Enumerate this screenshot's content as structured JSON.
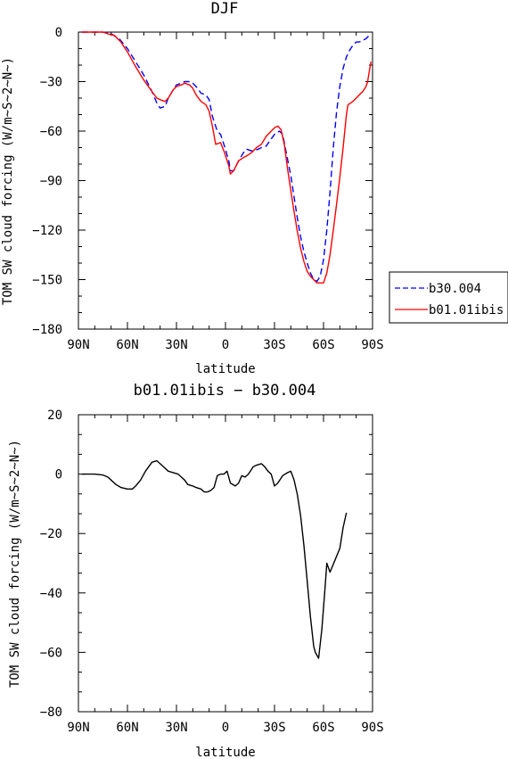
{
  "chart_data": [
    {
      "type": "line",
      "title": "DJF",
      "xlabel": "latitude",
      "ylabel": "TOM SW cloud forcing (W/m~S~2~N~)",
      "x_ticks": [
        "90N",
        "60N",
        "30N",
        "0",
        "30S",
        "60S",
        "90S"
      ],
      "x_tick_values": [
        -90,
        -60,
        -30,
        0,
        30,
        60,
        90
      ],
      "ylim": [
        -180,
        0
      ],
      "y_ticks": [
        0,
        -30,
        -60,
        -90,
        -120,
        -150,
        -180
      ],
      "legend": "right-outside",
      "grid": false,
      "series": [
        {
          "name": "b30.004",
          "color": "#0000ff",
          "dash": "dashed",
          "points": [
            [
              -88,
              0
            ],
            [
              -75,
              0
            ],
            [
              -70,
              -1
            ],
            [
              -65,
              -4
            ],
            [
              -60,
              -10
            ],
            [
              -55,
              -18
            ],
            [
              -50,
              -26
            ],
            [
              -45,
              -36
            ],
            [
              -42,
              -43
            ],
            [
              -40,
              -46
            ],
            [
              -37,
              -45
            ],
            [
              -35,
              -40
            ],
            [
              -32,
              -35
            ],
            [
              -30,
              -32
            ],
            [
              -27,
              -31
            ],
            [
              -25,
              -30
            ],
            [
              -22,
              -30
            ],
            [
              -20,
              -31
            ],
            [
              -17,
              -34
            ],
            [
              -15,
              -37
            ],
            [
              -12,
              -38
            ],
            [
              -10,
              -41
            ],
            [
              -8,
              -51
            ],
            [
              -5,
              -60
            ],
            [
              -3,
              -62
            ],
            [
              -1,
              -68
            ],
            [
              2,
              -78
            ],
            [
              3,
              -84
            ],
            [
              5,
              -84
            ],
            [
              8,
              -78
            ],
            [
              11,
              -73
            ],
            [
              13,
              -71
            ],
            [
              16,
              -72
            ],
            [
              20,
              -71
            ],
            [
              22,
              -70
            ],
            [
              25,
              -69
            ],
            [
              27,
              -66
            ],
            [
              30,
              -62
            ],
            [
              33,
              -60
            ],
            [
              35,
              -62
            ],
            [
              37,
              -72
            ],
            [
              40,
              -87
            ],
            [
              42,
              -100
            ],
            [
              44,
              -113
            ],
            [
              46,
              -124
            ],
            [
              48,
              -133
            ],
            [
              50,
              -140
            ],
            [
              52,
              -146
            ],
            [
              54,
              -150
            ],
            [
              56,
              -151
            ],
            [
              58,
              -148
            ],
            [
              60,
              -138
            ],
            [
              62,
              -120
            ],
            [
              64,
              -97
            ],
            [
              66,
              -70
            ],
            [
              68,
              -48
            ],
            [
              70,
              -33
            ],
            [
              72,
              -22
            ],
            [
              74,
              -15
            ],
            [
              76,
              -11
            ],
            [
              78,
              -8
            ],
            [
              80,
              -6
            ],
            [
              82,
              -6
            ],
            [
              84,
              -5
            ],
            [
              86,
              -4
            ],
            [
              88,
              -2
            ]
          ]
        },
        {
          "name": "b01.01ibis",
          "color": "#ff0000",
          "dash": "solid",
          "points": [
            [
              -88,
              0
            ],
            [
              -75,
              0
            ],
            [
              -72,
              -1
            ],
            [
              -68,
              -2
            ],
            [
              -64,
              -6
            ],
            [
              -60,
              -12
            ],
            [
              -55,
              -21
            ],
            [
              -50,
              -29
            ],
            [
              -45,
              -36
            ],
            [
              -42,
              -40
            ],
            [
              -40,
              -41
            ],
            [
              -37,
              -42
            ],
            [
              -35,
              -40
            ],
            [
              -32,
              -35
            ],
            [
              -30,
              -33
            ],
            [
              -27,
              -32
            ],
            [
              -25,
              -31
            ],
            [
              -22,
              -32
            ],
            [
              -20,
              -34
            ],
            [
              -18,
              -38
            ],
            [
              -15,
              -42
            ],
            [
              -12,
              -44
            ],
            [
              -10,
              -48
            ],
            [
              -8,
              -57
            ],
            [
              -6,
              -68
            ],
            [
              -3,
              -67
            ],
            [
              -1,
              -72
            ],
            [
              2,
              -81
            ],
            [
              3,
              -86
            ],
            [
              5,
              -84
            ],
            [
              8,
              -78
            ],
            [
              11,
              -76
            ],
            [
              13,
              -75
            ],
            [
              16,
              -73
            ],
            [
              19,
              -70
            ],
            [
              22,
              -68
            ],
            [
              25,
              -63
            ],
            [
              27,
              -61
            ],
            [
              30,
              -58
            ],
            [
              32,
              -57
            ],
            [
              34,
              -59
            ],
            [
              36,
              -68
            ],
            [
              38,
              -83
            ],
            [
              40,
              -96
            ],
            [
              42,
              -109
            ],
            [
              44,
              -121
            ],
            [
              46,
              -131
            ],
            [
              48,
              -139
            ],
            [
              50,
              -145
            ],
            [
              52,
              -148
            ],
            [
              54,
              -150
            ],
            [
              56,
              -152
            ],
            [
              58,
              -152
            ],
            [
              60,
              -152
            ],
            [
              62,
              -146
            ],
            [
              64,
              -135
            ],
            [
              66,
              -120
            ],
            [
              68,
              -104
            ],
            [
              70,
              -88
            ],
            [
              72,
              -70
            ],
            [
              74,
              -50
            ],
            [
              75,
              -44
            ],
            [
              78,
              -42
            ],
            [
              80,
              -40
            ],
            [
              82,
              -38
            ],
            [
              84,
              -36
            ],
            [
              86,
              -33
            ],
            [
              87,
              -30
            ],
            [
              88,
              -24
            ],
            [
              89,
              -18
            ]
          ]
        }
      ]
    },
    {
      "type": "line",
      "title": "b01.01ibis − b30.004",
      "xlabel": "latitude",
      "ylabel": "TOM SW cloud forcing (W/m~S~2~N~)",
      "x_ticks": [
        "90N",
        "60N",
        "30N",
        "0",
        "30S",
        "60S",
        "90S"
      ],
      "x_tick_values": [
        -90,
        -60,
        -30,
        0,
        30,
        60,
        90
      ],
      "ylim": [
        -80,
        20
      ],
      "y_ticks": [
        20,
        0,
        -20,
        -40,
        -60,
        -80
      ],
      "grid": false,
      "series": [
        {
          "color": "#000000",
          "dash": "solid",
          "points": [
            [
              -88,
              0
            ],
            [
              -80,
              0
            ],
            [
              -75,
              -0.3
            ],
            [
              -72,
              -1
            ],
            [
              -70,
              -2
            ],
            [
              -67,
              -3.5
            ],
            [
              -64,
              -4.5
            ],
            [
              -60,
              -5
            ],
            [
              -57,
              -5
            ],
            [
              -55,
              -4
            ],
            [
              -52,
              -2
            ],
            [
              -49,
              1
            ],
            [
              -45,
              4
            ],
            [
              -42,
              4.5
            ],
            [
              -40,
              3.5
            ],
            [
              -38,
              2.5
            ],
            [
              -35,
              1
            ],
            [
              -32,
              0.5
            ],
            [
              -29,
              0
            ],
            [
              -27,
              -1
            ],
            [
              -25,
              -2
            ],
            [
              -23,
              -3.5
            ],
            [
              -20,
              -4
            ],
            [
              -18,
              -4.5
            ],
            [
              -15,
              -5
            ],
            [
              -13,
              -6
            ],
            [
              -11,
              -6
            ],
            [
              -9,
              -5.5
            ],
            [
              -7,
              -4.5
            ],
            [
              -5,
              -0.5
            ],
            [
              -3,
              0
            ],
            [
              -1,
              0
            ],
            [
              1,
              1
            ],
            [
              3,
              -3
            ],
            [
              6,
              -4
            ],
            [
              8,
              -3
            ],
            [
              10,
              -0.5
            ],
            [
              12,
              -1
            ],
            [
              14,
              0
            ],
            [
              17,
              2.5
            ],
            [
              19,
              3
            ],
            [
              22,
              3.5
            ],
            [
              24,
              2.5
            ],
            [
              26,
              1
            ],
            [
              28,
              0
            ],
            [
              30,
              -4
            ],
            [
              32,
              -3
            ],
            [
              35,
              -0.5
            ],
            [
              38,
              0.5
            ],
            [
              40,
              1
            ],
            [
              42,
              -2
            ],
            [
              44,
              -7
            ],
            [
              46,
              -14
            ],
            [
              48,
              -24
            ],
            [
              50,
              -36
            ],
            [
              52,
              -48
            ],
            [
              54,
              -58
            ],
            [
              55,
              -60
            ],
            [
              57,
              -62
            ],
            [
              59,
              -52
            ],
            [
              61,
              -38
            ],
            [
              62,
              -30
            ],
            [
              64,
              -33
            ],
            [
              67,
              -29
            ],
            [
              70,
              -25
            ],
            [
              72,
              -18
            ],
            [
              74,
              -13
            ]
          ]
        }
      ]
    }
  ]
}
